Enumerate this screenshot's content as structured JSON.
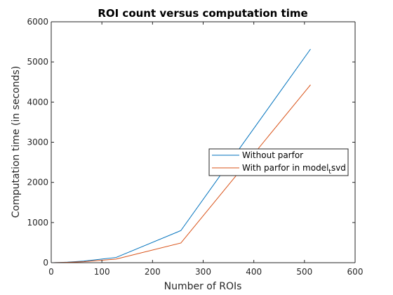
{
  "chart_data": {
    "type": "line",
    "title": "ROI count versus computation time",
    "xlabel": "Number of ROIs",
    "ylabel": "Computation time (in seconds)",
    "xlim": [
      0,
      600
    ],
    "ylim": [
      0,
      6000
    ],
    "xticks": [
      0,
      100,
      200,
      300,
      400,
      500,
      600
    ],
    "yticks": [
      0,
      1000,
      2000,
      3000,
      4000,
      5000,
      6000
    ],
    "grid": false,
    "legend_position": "right",
    "series": [
      {
        "name": "Without parfor",
        "color": "#0072bd",
        "x": [
          2,
          4,
          8,
          16,
          32,
          64,
          128,
          256,
          512
        ],
        "y": [
          0,
          1,
          2,
          5,
          12,
          40,
          130,
          800,
          5320
        ]
      },
      {
        "name": "With parfor in model_tsvd",
        "legend_parts": [
          "With parfor in model",
          "t",
          "svd"
        ],
        "color": "#d95319",
        "x": [
          2,
          4,
          8,
          16,
          32,
          64,
          128,
          256,
          512
        ],
        "y": [
          0,
          1,
          2,
          4,
          8,
          25,
          90,
          490,
          4430
        ]
      }
    ]
  }
}
